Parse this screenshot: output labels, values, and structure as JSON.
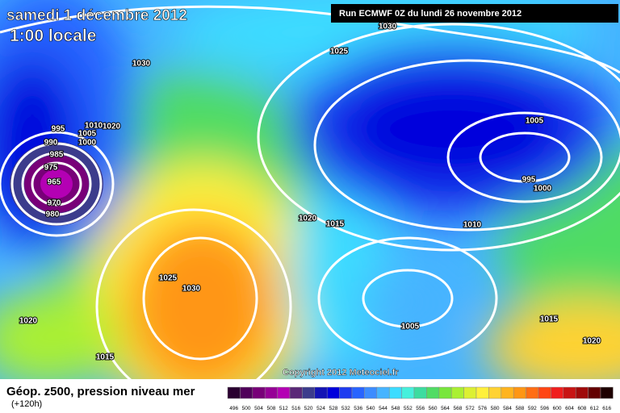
{
  "header": {
    "title": "samedi 1 décembre 2012",
    "time": "1:00 locale",
    "run": "Run ECMWF 0Z du lundi 26 novembre 2012"
  },
  "map": {
    "copyright": "Copyright 2012 Meteociel.fr",
    "isobar_labels": [
      "1030",
      "1025",
      "1030",
      "995",
      "990",
      "985",
      "975",
      "965",
      "970",
      "980",
      "1010",
      "1020",
      "1005",
      "1000",
      "1005",
      "995",
      "1000",
      "1010",
      "1020",
      "1015",
      "1025",
      "1030",
      "1020",
      "1015",
      "1005",
      "1015",
      "1020"
    ]
  },
  "legend": {
    "title": "Géop. z500, pression niveau mer",
    "subtitle": "(+120h)",
    "scale": [
      496,
      500,
      504,
      508,
      512,
      516,
      520,
      524,
      528,
      532,
      536,
      540,
      544,
      548,
      552,
      556,
      560,
      564,
      568,
      572,
      576,
      580,
      584,
      588,
      592,
      596,
      600,
      604,
      608,
      612,
      616
    ],
    "colors": [
      "#2a0030",
      "#50005a",
      "#780078",
      "#960096",
      "#b400b4",
      "#5a2878",
      "#3c3c8c",
      "#1414b4",
      "#0000dc",
      "#1e3cf0",
      "#2864ff",
      "#3c8cff",
      "#46b4ff",
      "#3cdcff",
      "#46f0dc",
      "#3cdca0",
      "#50dc64",
      "#78e63c",
      "#aaf032",
      "#dcf032",
      "#fff03c",
      "#ffd232",
      "#ffb41e",
      "#ff9614",
      "#ff6e14",
      "#ff4614",
      "#f01e1e",
      "#c81414",
      "#a00a0a",
      "#640000",
      "#1e0000"
    ]
  }
}
